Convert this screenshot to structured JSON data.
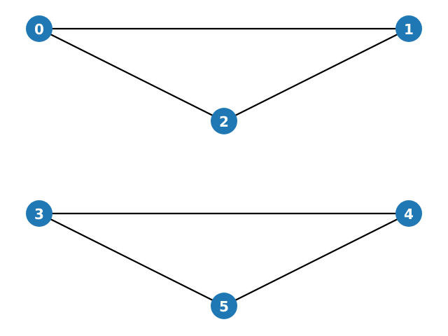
{
  "graph": {
    "colors": {
      "node": "#1f77b4",
      "edge": "#000000",
      "label": "#ffffff"
    },
    "nodes": [
      {
        "id": "0",
        "label": "0"
      },
      {
        "id": "1",
        "label": "1"
      },
      {
        "id": "2",
        "label": "2"
      },
      {
        "id": "3",
        "label": "3"
      },
      {
        "id": "4",
        "label": "4"
      },
      {
        "id": "5",
        "label": "5"
      }
    ],
    "edges": [
      {
        "source": "0",
        "target": "1"
      },
      {
        "source": "0",
        "target": "2"
      },
      {
        "source": "1",
        "target": "2"
      },
      {
        "source": "3",
        "target": "4"
      },
      {
        "source": "3",
        "target": "5"
      },
      {
        "source": "4",
        "target": "5"
      }
    ]
  }
}
